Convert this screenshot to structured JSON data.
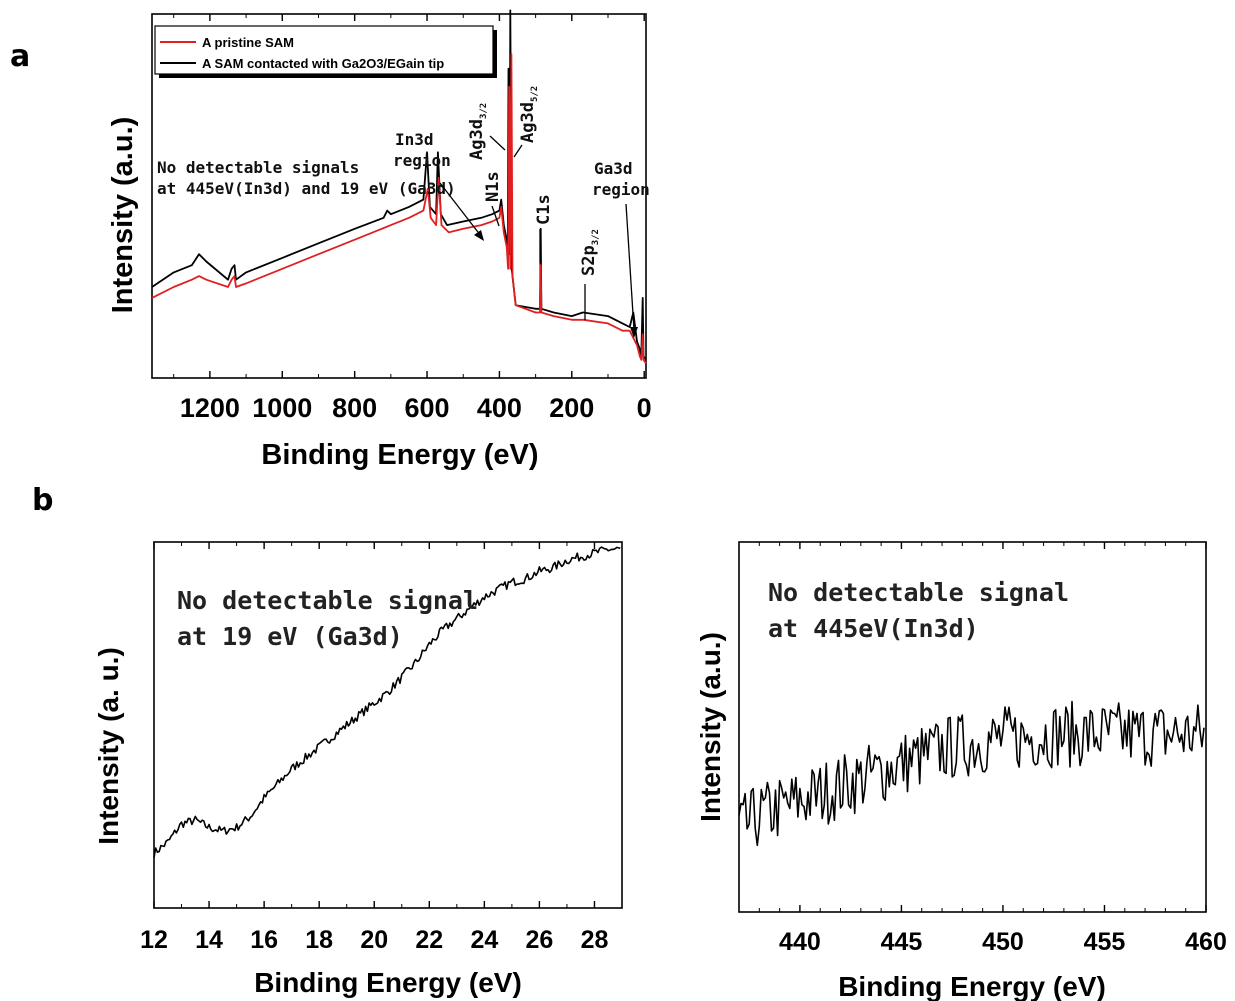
{
  "panels": {
    "a": "a",
    "b": "b"
  },
  "chart_data": [
    {
      "type": "line",
      "panel": "a",
      "xlabel": "Binding Energy (eV)",
      "ylabel": "Intensity (a.u.)",
      "xlim": [
        1360,
        -5
      ],
      "x_reversed": true,
      "ylim": [
        0,
        100
      ],
      "x_ticks": [
        "1200",
        "1000",
        "800",
        "600",
        "400",
        "200",
        "0"
      ],
      "x_tick_values": [
        1200,
        1000,
        800,
        600,
        400,
        200,
        0
      ],
      "legend": {
        "placement": "top-left",
        "entries": [
          "A pristine SAM",
          "A SAM contacted with Ga2O3/EGain tip"
        ]
      },
      "series": [
        {
          "name": "A pristine SAM",
          "color": "#e02020",
          "points": [
            [
              1360,
              22
            ],
            [
              1300,
              25
            ],
            [
              1250,
              27
            ],
            [
              1230,
              28
            ],
            [
              1210,
              27
            ],
            [
              1150,
              25
            ],
            [
              1140,
              27
            ],
            [
              1132,
              28
            ],
            [
              1128,
              25
            ],
            [
              1100,
              26
            ],
            [
              1000,
              30
            ],
            [
              900,
              34
            ],
            [
              800,
              38
            ],
            [
              700,
              42
            ],
            [
              650,
              44
            ],
            [
              610,
              46
            ],
            [
              598,
              52
            ],
            [
              590,
              44
            ],
            [
              575,
              42
            ],
            [
              568,
              55
            ],
            [
              560,
              42
            ],
            [
              540,
              40
            ],
            [
              500,
              41
            ],
            [
              450,
              42
            ],
            [
              420,
              43
            ],
            [
              400,
              44
            ],
            [
              395,
              47
            ],
            [
              388,
              40
            ],
            [
              380,
              36
            ],
            [
              376,
              30
            ],
            [
              373,
              80
            ],
            [
              370,
              30
            ],
            [
              367,
              89
            ],
            [
              364,
              28
            ],
            [
              355,
              20
            ],
            [
              300,
              18
            ],
            [
              288,
              18
            ],
            [
              286,
              31
            ],
            [
              284,
              18
            ],
            [
              250,
              17
            ],
            [
              200,
              16
            ],
            [
              170,
              16
            ],
            [
              168,
              16
            ],
            [
              100,
              15
            ],
            [
              60,
              13
            ],
            [
              40,
              13
            ],
            [
              20,
              9
            ],
            [
              12,
              6
            ],
            [
              8,
              5
            ],
            [
              4,
              12
            ],
            [
              2,
              5
            ],
            [
              -5,
              4
            ]
          ]
        },
        {
          "name": "A SAM contacted with Ga2O3/EGain tip",
          "color": "#000000",
          "points": [
            [
              1360,
              25
            ],
            [
              1300,
              29
            ],
            [
              1250,
              31
            ],
            [
              1230,
              34
            ],
            [
              1210,
              32
            ],
            [
              1150,
              27
            ],
            [
              1140,
              30
            ],
            [
              1132,
              31
            ],
            [
              1128,
              27
            ],
            [
              1100,
              29
            ],
            [
              1000,
              33
            ],
            [
              900,
              37
            ],
            [
              800,
              41
            ],
            [
              720,
              44
            ],
            [
              710,
              46
            ],
            [
              700,
              45
            ],
            [
              650,
              47
            ],
            [
              610,
              49
            ],
            [
              600,
              62
            ],
            [
              592,
              47
            ],
            [
              575,
              45
            ],
            [
              570,
              62
            ],
            [
              562,
              45
            ],
            [
              545,
              42
            ],
            [
              500,
              43
            ],
            [
              450,
              44
            ],
            [
              420,
              45
            ],
            [
              400,
              46
            ],
            [
              395,
              49
            ],
            [
              388,
              42
            ],
            [
              380,
              38
            ],
            [
              377,
              36
            ],
            [
              375,
              85
            ],
            [
              372,
              34
            ],
            [
              370,
              101
            ],
            [
              366,
              30
            ],
            [
              355,
              20
            ],
            [
              300,
              19
            ],
            [
              288,
              19
            ],
            [
              286,
              41
            ],
            [
              284,
              19
            ],
            [
              250,
              18
            ],
            [
              200,
              17
            ],
            [
              170,
              18
            ],
            [
              168,
              18
            ],
            [
              100,
              17
            ],
            [
              60,
              15
            ],
            [
              40,
              14
            ],
            [
              30,
              18
            ],
            [
              20,
              10
            ],
            [
              12,
              8
            ],
            [
              8,
              6
            ],
            [
              4,
              22
            ],
            [
              2,
              6
            ],
            [
              -5,
              5
            ]
          ]
        }
      ],
      "annotations": {
        "note_line1": "No detectable signals",
        "note_line2": "at 445eV(In3d) and 19 eV (Ga3d)",
        "in3d_line1": "In3d",
        "in3d_line2": "region",
        "n1s": "N1s",
        "ag_32_main": "Ag3d",
        "ag_32_sub": "3/2",
        "ag_52_main": "Ag3d",
        "ag_52_sub": "5/2",
        "c1s": "C1s",
        "s2p_main": "S2p",
        "s2p_sub": "3/2",
        "ga3d_line1": "Ga3d",
        "ga3d_line2": "region"
      }
    },
    {
      "type": "line",
      "panel": "b-left",
      "xlabel": "Binding Energy (eV)",
      "ylabel": "Intensity (a. u.)",
      "xlim": [
        12,
        29
      ],
      "ylim": [
        0,
        100
      ],
      "x_ticks": [
        "12",
        "14",
        "16",
        "18",
        "20",
        "22",
        "24",
        "26",
        "28"
      ],
      "x_tick_values": [
        12,
        14,
        16,
        18,
        20,
        22,
        24,
        26,
        28
      ],
      "annotation_line1": "No detectable signal",
      "annotation_line2": "at 19 eV (Ga3d)",
      "series": [
        {
          "color": "#000000",
          "points": [
            [
              12,
              15
            ],
            [
              12.5,
              18
            ],
            [
              13,
              23
            ],
            [
              13.5,
              24
            ],
            [
              14,
              22
            ],
            [
              14.5,
              21
            ],
            [
              15,
              22
            ],
            [
              15.5,
              25
            ],
            [
              16,
              30
            ],
            [
              16.5,
              34
            ],
            [
              17,
              38
            ],
            [
              17.5,
              41
            ],
            [
              18,
              44
            ],
            [
              18.5,
              47
            ],
            [
              19,
              50
            ],
            [
              19.5,
              53
            ],
            [
              20,
              56
            ],
            [
              20.5,
              59
            ],
            [
              21,
              63
            ],
            [
              21.5,
              67
            ],
            [
              22,
              72
            ],
            [
              22.5,
              76
            ],
            [
              23,
              79
            ],
            [
              23.5,
              82
            ],
            [
              24,
              85
            ],
            [
              24.5,
              87
            ],
            [
              25,
              89
            ],
            [
              25.5,
              90
            ],
            [
              26,
              92
            ],
            [
              26.5,
              93
            ],
            [
              27,
              95
            ],
            [
              27.5,
              96
            ],
            [
              28,
              97
            ],
            [
              28.5,
              98
            ],
            [
              29,
              98
            ]
          ]
        }
      ]
    },
    {
      "type": "line",
      "panel": "b-right",
      "xlabel": "Binding Energy (eV)",
      "ylabel": "Intensity (a.u.)",
      "xlim": [
        437,
        460
      ],
      "ylim": [
        0,
        100
      ],
      "x_ticks": [
        "440",
        "445",
        "450",
        "455",
        "460"
      ],
      "x_tick_values": [
        440,
        445,
        450,
        455,
        460
      ],
      "annotation_line1": "No detectable signal",
      "annotation_line2": "at 445eV(In3d)",
      "series": [
        {
          "color": "#000000",
          "points": [
            [
              437,
              22
            ],
            [
              438,
              26
            ],
            [
              439,
              28
            ],
            [
              440,
              30
            ],
            [
              441,
              32
            ],
            [
              442,
              34
            ],
            [
              443,
              36
            ],
            [
              444,
              38
            ],
            [
              445,
              40
            ],
            [
              446,
              42
            ],
            [
              447,
              44
            ],
            [
              448,
              45
            ],
            [
              449,
              46
            ],
            [
              450,
              47
            ],
            [
              451,
              47
            ],
            [
              452,
              48
            ],
            [
              453,
              48
            ],
            [
              454,
              48
            ],
            [
              455,
              48
            ],
            [
              456,
              48
            ],
            [
              457,
              48
            ],
            [
              458,
              48
            ],
            [
              459,
              48
            ],
            [
              460,
              48
            ]
          ],
          "noise_amplitude": 9
        }
      ]
    }
  ]
}
